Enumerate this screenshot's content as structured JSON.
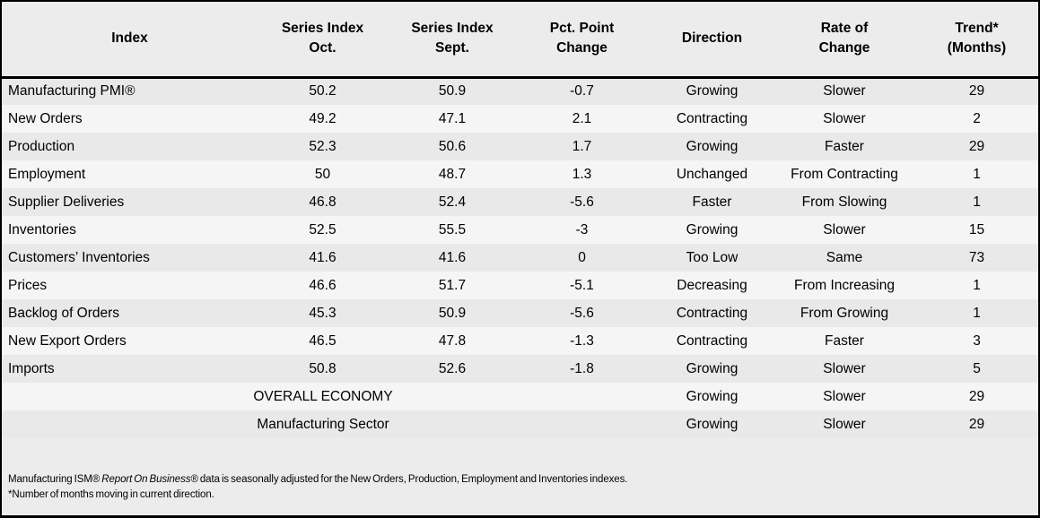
{
  "colors": {
    "border": "#000000",
    "header_bg": "#ececec",
    "row_odd_bg": "#e9e9e9",
    "row_even_bg": "#f5f5f5",
    "text": "#000000"
  },
  "chart_data": {
    "type": "table",
    "title": "",
    "columns": [
      {
        "id": "index",
        "label": "Index"
      },
      {
        "id": "oct",
        "label": "Series Index\nOct."
      },
      {
        "id": "sept",
        "label": "Series Index\nSept."
      },
      {
        "id": "change",
        "label": "Pct. Point\nChange"
      },
      {
        "id": "direction",
        "label": "Direction"
      },
      {
        "id": "rate",
        "label": "Rate of\nChange"
      },
      {
        "id": "trend",
        "label": "Trend*\n(Months)"
      }
    ],
    "rows": [
      {
        "index": "Manufacturing PMI®",
        "oct": "50.2",
        "sept": "50.9",
        "change": "-0.7",
        "direction": "Growing",
        "rate": "Slower",
        "trend": "29"
      },
      {
        "index": "New Orders",
        "oct": "49.2",
        "sept": "47.1",
        "change": "2.1",
        "direction": "Contracting",
        "rate": "Slower",
        "trend": "2"
      },
      {
        "index": "Production",
        "oct": "52.3",
        "sept": "50.6",
        "change": "1.7",
        "direction": "Growing",
        "rate": "Faster",
        "trend": "29"
      },
      {
        "index": "Employment",
        "oct": "50",
        "sept": "48.7",
        "change": "1.3",
        "direction": "Unchanged",
        "rate": "From Contracting",
        "trend": "1"
      },
      {
        "index": "Supplier Deliveries",
        "oct": "46.8",
        "sept": "52.4",
        "change": "-5.6",
        "direction": "Faster",
        "rate": "From Slowing",
        "trend": "1"
      },
      {
        "index": "Inventories",
        "oct": "52.5",
        "sept": "55.5",
        "change": "-3",
        "direction": "Growing",
        "rate": "Slower",
        "trend": "15"
      },
      {
        "index": "Customers’ Inventories",
        "oct": "41.6",
        "sept": "41.6",
        "change": "0",
        "direction": "Too Low",
        "rate": "Same",
        "trend": "73"
      },
      {
        "index": "Prices",
        "oct": "46.6",
        "sept": "51.7",
        "change": "-5.1",
        "direction": "Decreasing",
        "rate": "From Increasing",
        "trend": "1"
      },
      {
        "index": "Backlog of Orders",
        "oct": "45.3",
        "sept": "50.9",
        "change": "-5.6",
        "direction": "Contracting",
        "rate": "From Growing",
        "trend": "1"
      },
      {
        "index": "New Export Orders",
        "oct": "46.5",
        "sept": "47.8",
        "change": "-1.3",
        "direction": "Contracting",
        "rate": "Faster",
        "trend": "3"
      },
      {
        "index": "Imports",
        "oct": "50.8",
        "sept": "52.6",
        "change": "-1.8",
        "direction": "Growing",
        "rate": "Slower",
        "trend": "5"
      }
    ],
    "summary_rows": [
      {
        "label": "OVERALL ECONOMY",
        "direction": "Growing",
        "rate": "Slower",
        "trend": "29"
      },
      {
        "label": "Manufacturing Sector",
        "direction": "Growing",
        "rate": "Slower",
        "trend": "29"
      }
    ]
  },
  "footer": {
    "line1_prefix": "Manufacturing ISM® ",
    "line1_italic": "Report On Business®",
    "line1_suffix": "  data is seasonally adjusted for the New Orders, Production, Employment and Inventories indexes.",
    "line2": "*Number of months moving in current direction."
  }
}
